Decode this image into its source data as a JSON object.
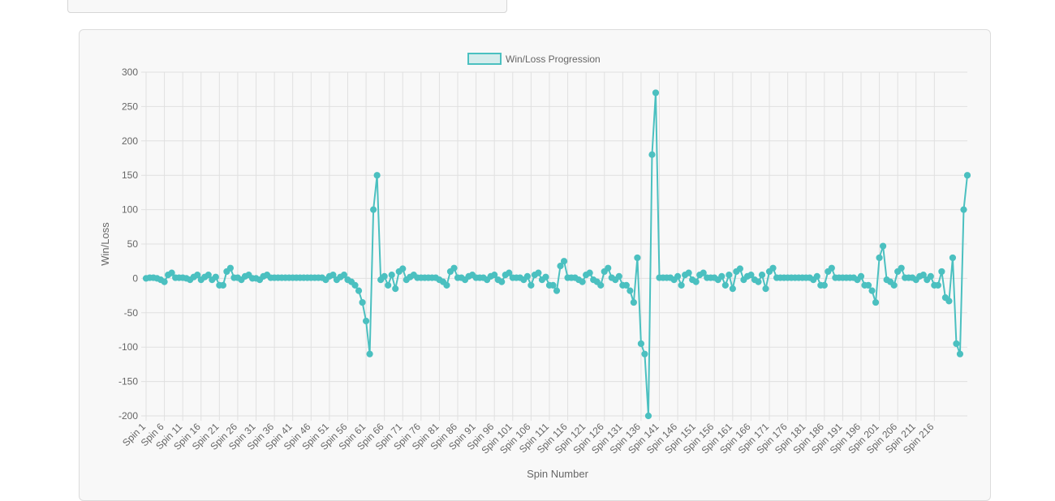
{
  "chart_data": {
    "type": "line",
    "title": "",
    "xlabel": "Spin Number",
    "ylabel": "Win/Loss",
    "ylim": [
      -200,
      300
    ],
    "yticks": [
      300,
      250,
      200,
      150,
      100,
      50,
      0,
      -50,
      -100,
      -150,
      -200
    ],
    "grid": true,
    "legend_position": "top-center",
    "series": [
      {
        "name": "Win/Loss Progression",
        "color": "#4bc0c0",
        "values": [
          0,
          1,
          1,
          0,
          -2,
          -5,
          5,
          8,
          1,
          1,
          1,
          0,
          -2,
          2,
          5,
          -2,
          2,
          5,
          -2,
          2,
          -10,
          -10,
          10,
          15,
          1,
          1,
          -2,
          3,
          5,
          0,
          0,
          -2,
          3,
          5,
          1,
          1,
          1,
          1,
          1,
          1,
          1,
          1,
          1,
          1,
          1,
          1,
          1,
          1,
          1,
          -2,
          3,
          5,
          -2,
          2,
          5,
          -2,
          -5,
          -10,
          -18,
          -35,
          -62,
          -110,
          100,
          150,
          -2,
          3,
          -10,
          5,
          -15,
          10,
          14,
          -2,
          2,
          5,
          1,
          1,
          1,
          1,
          1,
          1,
          -2,
          -5,
          -10,
          10,
          15,
          1,
          1,
          -2,
          3,
          5,
          1,
          1,
          1,
          -2,
          3,
          5,
          -2,
          -5,
          5,
          8,
          1,
          1,
          1,
          -2,
          3,
          -10,
          5,
          8,
          -2,
          2,
          -10,
          -10,
          -18,
          18,
          25,
          1,
          1,
          1,
          -2,
          -5,
          5,
          8,
          -2,
          -5,
          -10,
          10,
          15,
          1,
          -2,
          3,
          -10,
          -10,
          -18,
          -35,
          30,
          -95,
          -110,
          -200,
          180,
          270,
          1,
          1,
          1,
          1,
          -2,
          3,
          -10,
          5,
          8,
          -2,
          -5,
          5,
          8,
          1,
          1,
          1,
          -2,
          3,
          -10,
          5,
          -15,
          10,
          14,
          -2,
          3,
          5,
          -2,
          -5,
          5,
          -15,
          10,
          15,
          1,
          1,
          1,
          1,
          1,
          1,
          1,
          1,
          1,
          1,
          -2,
          3,
          -10,
          -10,
          10,
          15,
          1,
          1,
          1,
          1,
          1,
          1,
          -2,
          3,
          -10,
          -10,
          -18,
          -35,
          30,
          47,
          -2,
          -5,
          -10,
          10,
          15,
          1,
          1,
          1,
          -2,
          3,
          5,
          -2,
          3,
          -10,
          -10,
          10,
          -28,
          -33,
          30,
          -95,
          -110,
          100,
          150
        ]
      }
    ],
    "x_label_prefix": "Spin ",
    "x_tick_labels": [
      "Spin 1",
      "Spin 6",
      "Spin 11",
      "Spin 16",
      "Spin 21",
      "Spin 26",
      "Spin 31",
      "Spin 36",
      "Spin 41",
      "Spin 46",
      "Spin 51",
      "Spin 56",
      "Spin 61",
      "Spin 66",
      "Spin 71",
      "Spin 76",
      "Spin 81",
      "Spin 86",
      "Spin 91",
      "Spin 96",
      "Spin 101",
      "Spin 106",
      "Spin 111",
      "Spin 116",
      "Spin 121",
      "Spin 126",
      "Spin 131",
      "Spin 136",
      "Spin 141",
      "Spin 146",
      "Spin 151",
      "Spin 156",
      "Spin 161",
      "Spin 166",
      "Spin 171",
      "Spin 176",
      "Spin 181",
      "Spin 186",
      "Spin 191",
      "Spin 196",
      "Spin 201",
      "Spin 206",
      "Spin 211",
      "Spin 216"
    ]
  }
}
